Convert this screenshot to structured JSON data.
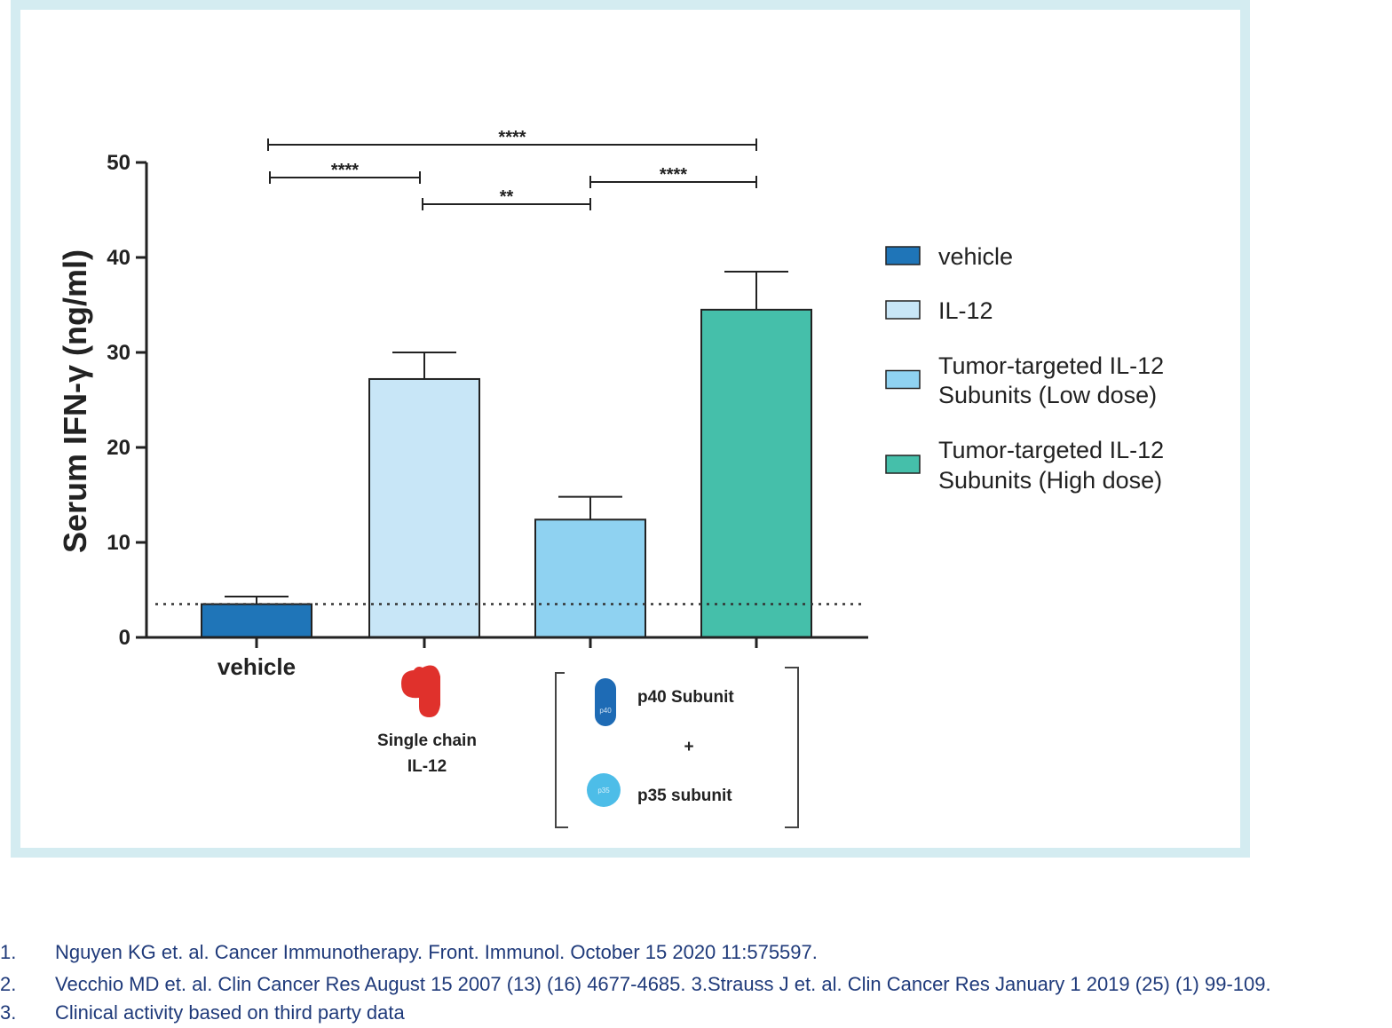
{
  "chart_data": {
    "type": "bar",
    "ylabel": "Serum IFN-γ (ng/ml)",
    "ylim": [
      0,
      50
    ],
    "yticks": [
      0,
      10,
      20,
      30,
      40,
      50
    ],
    "threshold": 3.5,
    "categories": [
      "vehicle",
      "IL-12",
      "Tumor-targeted IL-12 Subunits (Low dose)",
      "Tumor-targeted IL-12 Subunits (High dose)"
    ],
    "values": [
      3.5,
      27.2,
      12.4,
      34.5
    ],
    "errors": [
      0.8,
      2.8,
      2.4,
      4.0
    ],
    "colors": [
      "#1f75b8",
      "#c8e6f7",
      "#8fd2f1",
      "#45bfaa"
    ],
    "legend": [
      {
        "lines": [
          "vehicle"
        ],
        "color": "#1f75b8"
      },
      {
        "lines": [
          "IL-12"
        ],
        "color": "#c8e6f7"
      },
      {
        "lines": [
          "Tumor-targeted IL-12",
          "Subunits (Low dose)"
        ],
        "color": "#8fd2f1"
      },
      {
        "lines": [
          "Tumor-targeted IL-12",
          "Subunits (High dose)"
        ],
        "color": "#45bfaa"
      }
    ],
    "significance": [
      {
        "from": 0,
        "to": 3,
        "label": "****"
      },
      {
        "from": 0,
        "to": 1,
        "label": "****"
      },
      {
        "from": 1,
        "to": 2,
        "label": "**"
      },
      {
        "from": 2,
        "to": 3,
        "label": "****"
      }
    ],
    "xlabels": {
      "vehicle": "vehicle",
      "single_chain": [
        "Single chain",
        "IL-12"
      ],
      "p40": "p40 Subunit",
      "p40_icon": "p40",
      "plus": "+",
      "p35": "p35 subunit",
      "p35_icon": "p35"
    }
  },
  "references": [
    {
      "num": "1.",
      "text": "Nguyen KG et. al. Cancer Immunotherapy. Front. Immunol. October 15 2020 11:575597."
    },
    {
      "num": "2.",
      "text": "Vecchio MD et. al. Clin Cancer Res August 15 2007 (13) (16) 4677-4685. 3.Strauss J et. al. Clin Cancer Res January 1 2019 (25) (1) 99-109."
    },
    {
      "num": "3.",
      "text": "Clinical activity based on third party data"
    }
  ]
}
